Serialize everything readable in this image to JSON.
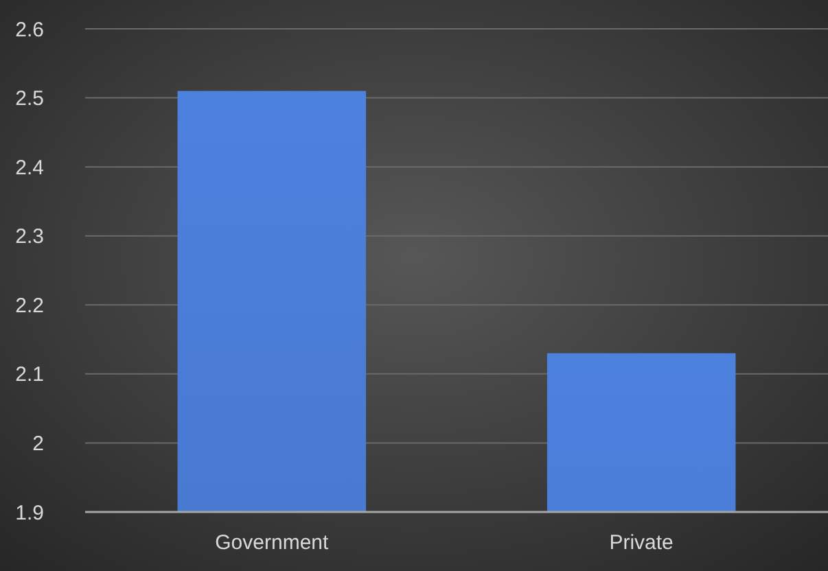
{
  "chart_data": {
    "type": "bar",
    "categories": [
      "Government",
      "Private"
    ],
    "values": [
      2.51,
      2.13
    ],
    "color": "#4472c4",
    "ylim": [
      1.9,
      2.6
    ],
    "yticks": [
      1.9,
      2,
      2.1,
      2.2,
      2.3,
      2.4,
      2.5,
      2.6
    ],
    "grid": "y"
  }
}
